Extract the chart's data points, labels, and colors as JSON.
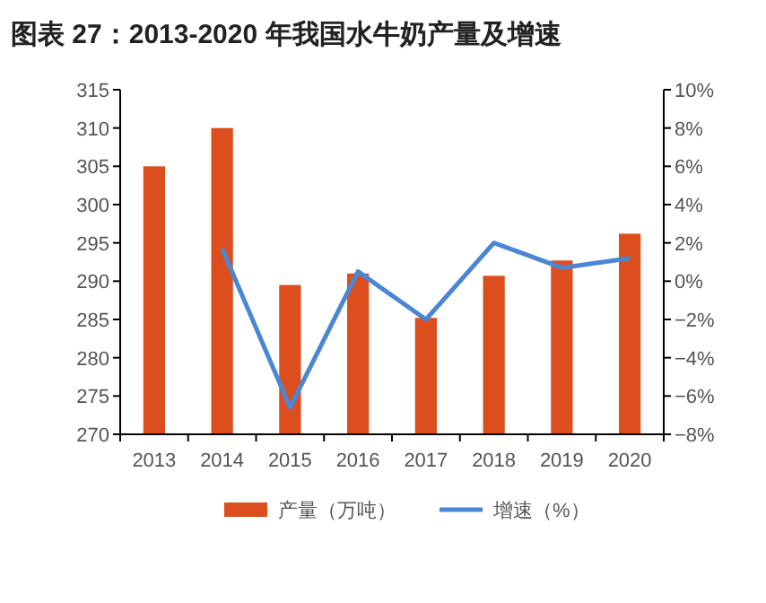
{
  "chart_data": {
    "type": "bar",
    "title": "图表 27：2013-2020 年我国水牛奶产量及增速",
    "categories": [
      "2013",
      "2014",
      "2015",
      "2016",
      "2017",
      "2018",
      "2019",
      "2020"
    ],
    "series": [
      {
        "name": "产量（万吨）",
        "color": "#dd4e1e",
        "values": [
          305,
          310,
          289.5,
          291,
          285.2,
          290.7,
          292.7,
          296.2
        ]
      },
      {
        "name": "增速（%）",
        "type": "line",
        "axis": "y2",
        "color": "#4a86d4",
        "values": [
          null,
          1.7,
          -6.6,
          0.5,
          -2.0,
          2.0,
          0.7,
          1.2
        ]
      }
    ],
    "ylim": [
      270,
      315
    ],
    "yticks": [
      270,
      275,
      280,
      285,
      290,
      295,
      300,
      305,
      310,
      315
    ],
    "y2lim": [
      -8,
      10
    ],
    "y2ticks": [
      {
        "value": -8,
        "label": "−8%"
      },
      {
        "value": -6,
        "label": "−6%"
      },
      {
        "value": -4,
        "label": "−4%"
      },
      {
        "value": -2,
        "label": "−2%"
      },
      {
        "value": 0,
        "label": "0%"
      },
      {
        "value": 2,
        "label": "2%"
      },
      {
        "value": 4,
        "label": "4%"
      },
      {
        "value": 6,
        "label": "6%"
      },
      {
        "value": 8,
        "label": "8%"
      },
      {
        "value": 10,
        "label": "10%"
      }
    ],
    "grid": false,
    "legend": "bottom"
  }
}
